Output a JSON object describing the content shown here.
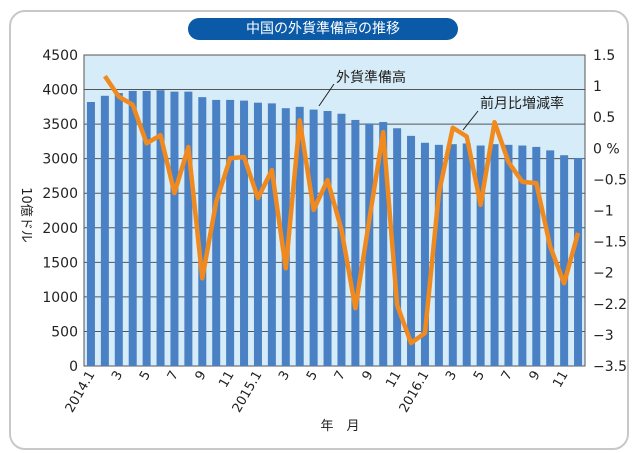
{
  "chart_data": {
    "type": "bar+line",
    "title": "中国の外貨準備高の推移",
    "xlabel": "年　月",
    "ylabel_left": "10億ドル",
    "ylim_left": [
      0,
      4500
    ],
    "yticks_left": [
      "0",
      "500",
      "1000",
      "1500",
      "2000",
      "2500",
      "3000",
      "3500",
      "4000",
      "4500"
    ],
    "ylim_right": [
      -3.5,
      1.5
    ],
    "yticks_right": [
      "1.5",
      "1",
      "0.5",
      "0 %",
      "-0.5",
      "-1",
      "-1.5",
      "-2",
      "-2.2",
      "-3",
      "-3.5"
    ],
    "x_tick_labels": [
      "2014.1",
      "3",
      "5",
      "7",
      "9",
      "11",
      "2015.1",
      "3",
      "5",
      "7",
      "9",
      "11",
      "2016.1",
      "3",
      "5",
      "7",
      "9",
      "11"
    ],
    "months": [
      "2014.1",
      "2014.2",
      "2014.3",
      "2014.4",
      "2014.5",
      "2014.6",
      "2014.7",
      "2014.8",
      "2014.9",
      "2014.10",
      "2014.11",
      "2014.12",
      "2015.1",
      "2015.2",
      "2015.3",
      "2015.4",
      "2015.5",
      "2015.6",
      "2015.7",
      "2015.8",
      "2015.9",
      "2015.10",
      "2015.11",
      "2015.12",
      "2016.1",
      "2016.2",
      "2016.3",
      "2016.4",
      "2016.5",
      "2016.6",
      "2016.7",
      "2016.8",
      "2016.9",
      "2016.10",
      "2016.11",
      "2016.12"
    ],
    "series": [
      {
        "name": "外貨準備高",
        "type": "bar",
        "axis": "left",
        "color": "#4a80c4",
        "values": [
          3820,
          3910,
          3950,
          3980,
          3980,
          3990,
          3970,
          3970,
          3890,
          3850,
          3850,
          3840,
          3810,
          3800,
          3730,
          3750,
          3710,
          3690,
          3650,
          3560,
          3510,
          3530,
          3440,
          3330,
          3230,
          3200,
          3210,
          3220,
          3190,
          3210,
          3200,
          3190,
          3170,
          3120,
          3050,
          3010
        ]
      },
      {
        "name": "前月比増減率",
        "type": "line",
        "axis": "right",
        "color": "#f08a1e",
        "start_month": "2014.2",
        "values": [
          1.16,
          0.83,
          0.7,
          0.08,
          0.21,
          -0.72,
          0.02,
          -2.09,
          -0.86,
          -0.16,
          -0.14,
          -0.8,
          -0.35,
          -1.93,
          0.45,
          -0.99,
          -0.51,
          -1.31,
          -2.57,
          -1.15,
          0.26,
          -2.52,
          -3.13,
          -2.97,
          -0.72,
          0.33,
          0.19,
          -0.91,
          0.42,
          -0.22,
          -0.54,
          -0.56,
          -1.58,
          -2.17,
          -1.36
        ]
      }
    ],
    "annotations": [
      "外貨準備高",
      "前月比増減率"
    ],
    "grid": true
  }
}
